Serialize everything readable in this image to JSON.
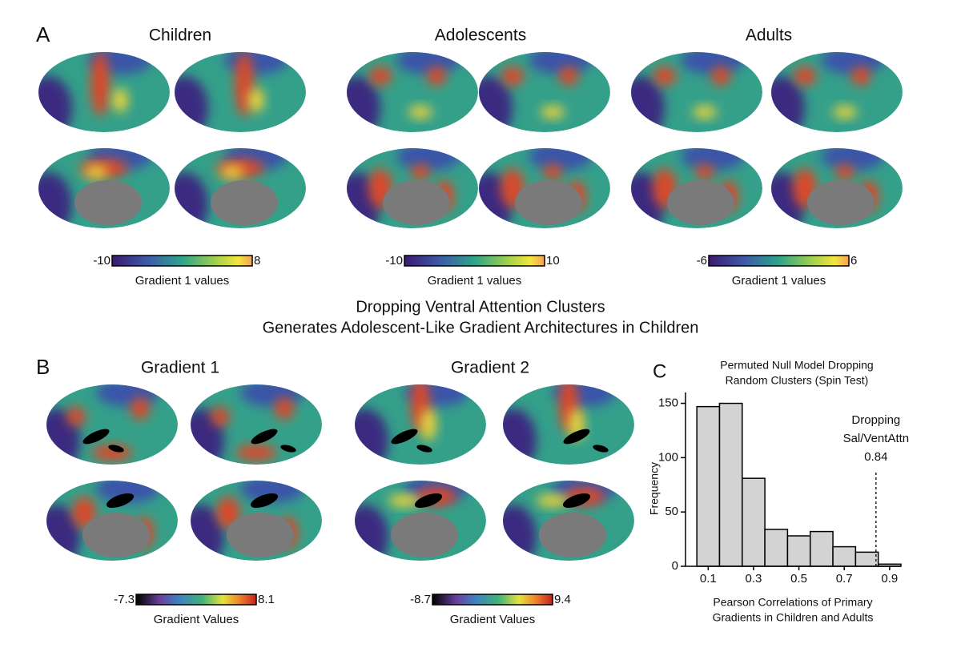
{
  "panel_a": {
    "letter": "A",
    "groups": [
      {
        "title": "Children",
        "colorbar": {
          "min": -10,
          "max": 8,
          "label": "Gradient 1 values"
        }
      },
      {
        "title": "Adolescents",
        "colorbar": {
          "min": -10,
          "max": 10,
          "label": "Gradient 1 values"
        }
      },
      {
        "title": "Adults",
        "colorbar": {
          "min": -6,
          "max": 6,
          "label": "Gradient 1 values"
        }
      }
    ]
  },
  "middle_title": [
    "Dropping Ventral Attention Clusters",
    "Generates Adolescent-Like Gradient Architectures in Children"
  ],
  "panel_b": {
    "letter": "B",
    "groups": [
      {
        "title": "Gradient 1",
        "colorbar": {
          "min": -7.3,
          "max": 8.1,
          "label": "Gradient Values"
        }
      },
      {
        "title": "Gradient 2",
        "colorbar": {
          "min": -8.7,
          "max": 9.4,
          "label": "Gradient Values"
        }
      }
    ]
  },
  "chart_data": {
    "type": "histogram",
    "panel_label": "C",
    "title": [
      "Permuted Null Model Dropping",
      "Random Clusters (Spin Test)"
    ],
    "x_label": [
      "Pearson Correlations of Primary",
      "Gradients in Children and Adults"
    ],
    "y_label": "Frequency",
    "bins": [
      0.05,
      0.15,
      0.25,
      0.35,
      0.45,
      0.55,
      0.65,
      0.75,
      0.85,
      0.95
    ],
    "values": [
      147,
      150,
      81,
      34,
      28,
      32,
      18,
      13,
      2
    ],
    "color": "#d3d3d3",
    "xlim": [
      0,
      0.95
    ],
    "ylim": [
      0,
      160
    ],
    "xticks": [
      0.1,
      0.3,
      0.5,
      0.7,
      0.9
    ],
    "yticks": [
      0,
      50,
      100,
      150
    ],
    "annotation": {
      "text": [
        "Dropping",
        "Sal/VentAttn"
      ],
      "value": 0.84
    }
  }
}
